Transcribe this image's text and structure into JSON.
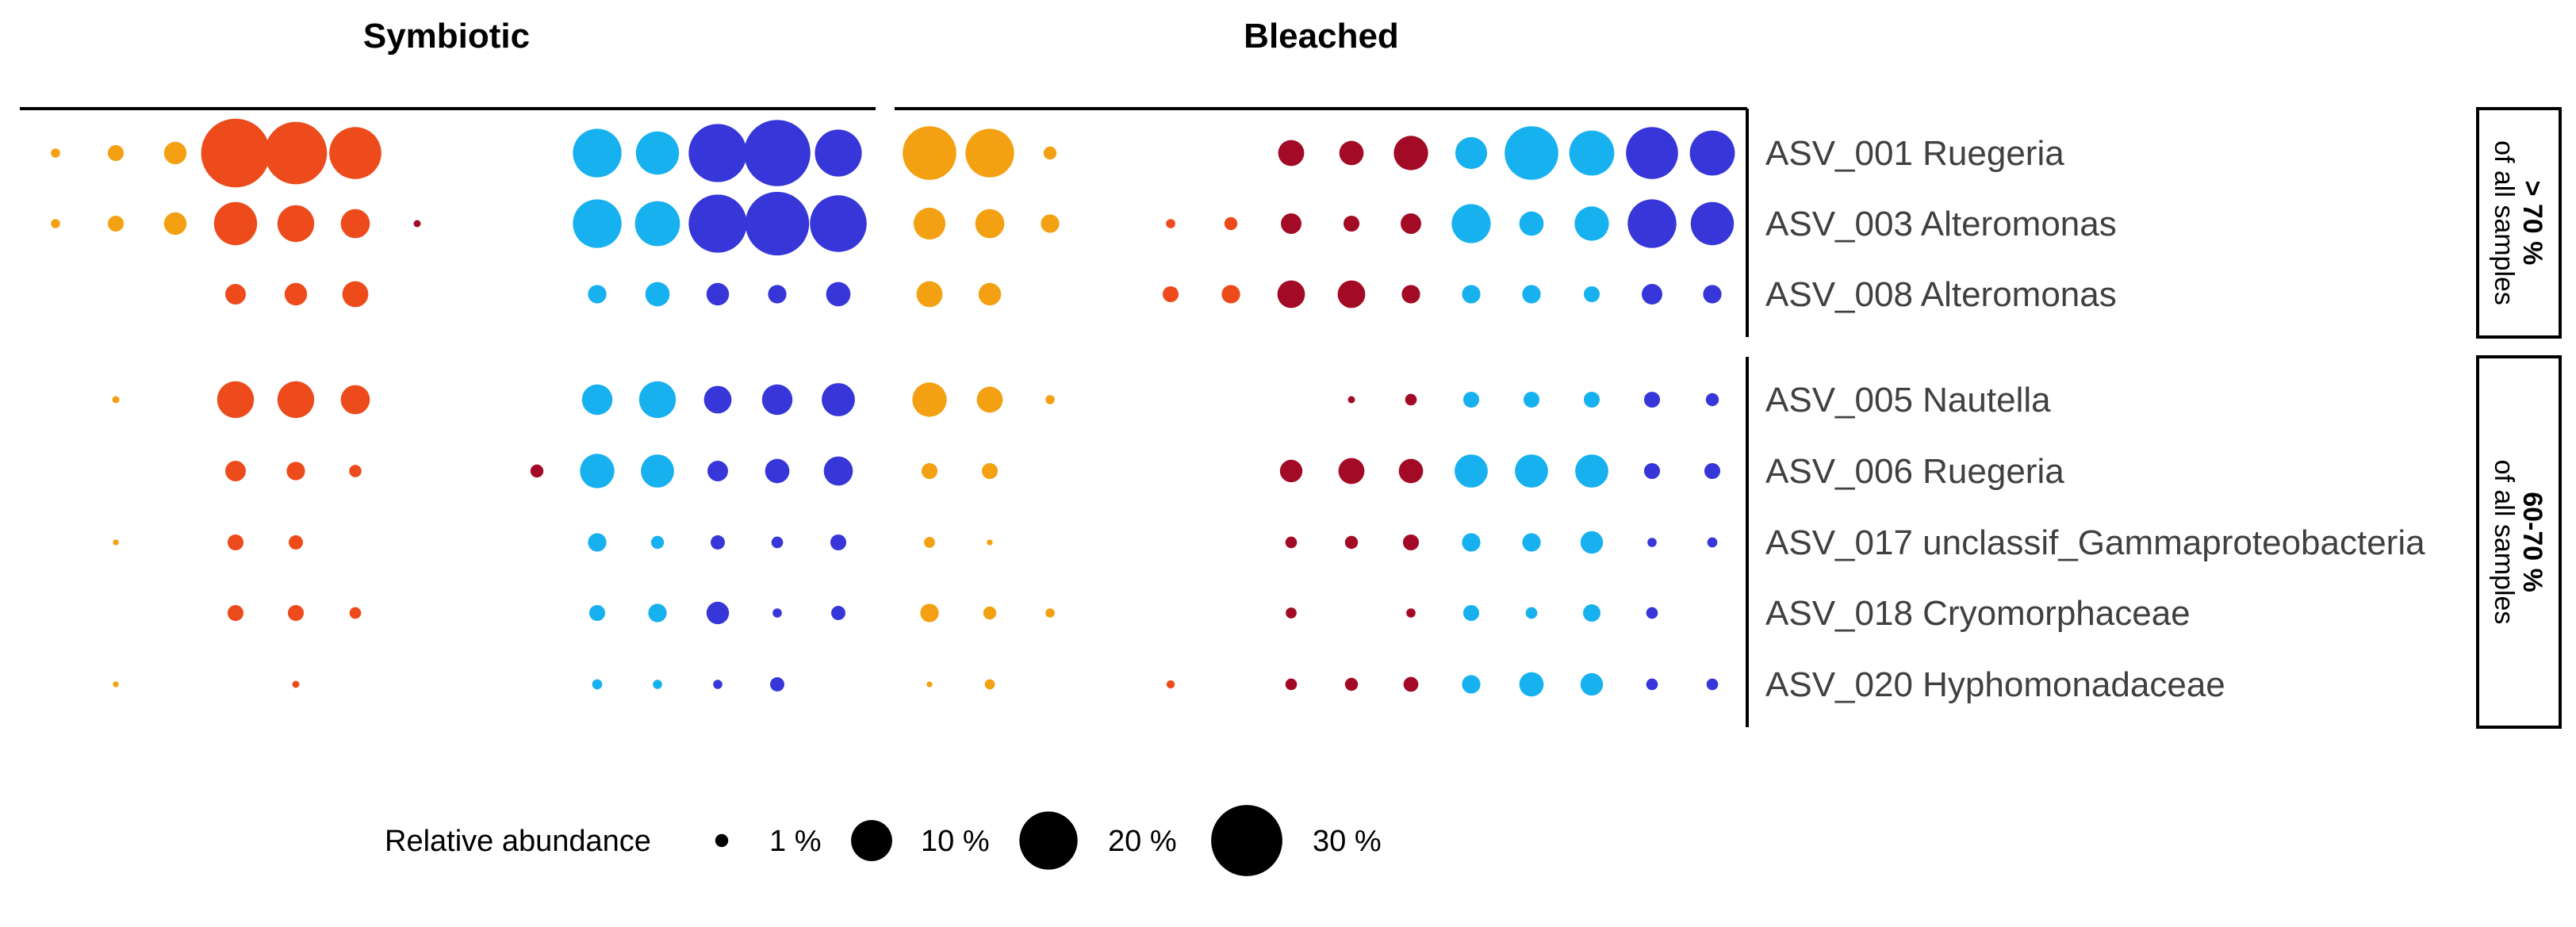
{
  "chart_data": {
    "type": "bubble",
    "panels": [
      "Symbiotic",
      "Bleached"
    ],
    "colors": {
      "orange": "#F3A113",
      "red_orange": "#EE4B1C",
      "dark_red": "#A20A25",
      "light_blue": "#17B1EF",
      "dark_blue": "#3636D9"
    },
    "groups": [
      {
        "label_bold": "> 70 %",
        "label_rest": "of all samples",
        "rows": [
          {
            "label": "ASV_001 Ruegeria",
            "symbiotic": [
              [
                "orange",
                0.5
              ],
              [
                "orange",
                1.5
              ],
              [
                "orange",
                3
              ],
              [
                "red_orange",
                28
              ],
              [
                "red_orange",
                23
              ],
              [
                "red_orange",
                16
              ],
              [
                null,
                0
              ],
              [
                null,
                0
              ],
              [
                null,
                0
              ],
              [
                "light_blue",
                14
              ],
              [
                "light_blue",
                11
              ],
              [
                "dark_blue",
                20
              ],
              [
                "dark_blue",
                26
              ],
              [
                "dark_blue",
                13
              ]
            ],
            "bleached": [
              [
                "orange",
                17
              ],
              [
                "orange",
                14
              ],
              [
                "orange",
                1
              ],
              [
                null,
                0
              ],
              [
                null,
                0
              ],
              [
                null,
                0
              ],
              [
                "dark_red",
                4
              ],
              [
                "dark_red",
                3.5
              ],
              [
                "dark_red",
                7
              ],
              [
                "light_blue",
                6
              ],
              [
                "light_blue",
                17
              ],
              [
                "light_blue",
                12
              ],
              [
                "dark_blue",
                16
              ],
              [
                "dark_blue",
                12
              ]
            ]
          },
          {
            "label": "ASV_003 Alteromonas",
            "symbiotic": [
              [
                "orange",
                0.5
              ],
              [
                "orange",
                1.5
              ],
              [
                "orange",
                3
              ],
              [
                "red_orange",
                11
              ],
              [
                "red_orange",
                8
              ],
              [
                "red_orange",
                5
              ],
              [
                "dark_red",
                0.3
              ],
              [
                null,
                0
              ],
              [
                null,
                0
              ],
              [
                "light_blue",
                14
              ],
              [
                "light_blue",
                12
              ],
              [
                "dark_blue",
                20
              ],
              [
                "dark_blue",
                24
              ],
              [
                "dark_blue",
                19
              ]
            ],
            "bleached": [
              [
                "orange",
                6
              ],
              [
                "orange",
                5
              ],
              [
                "orange",
                2
              ],
              [
                null,
                0
              ],
              [
                "red_orange",
                0.5
              ],
              [
                "red_orange",
                1
              ],
              [
                "dark_red",
                2.5
              ],
              [
                "dark_red",
                1.5
              ],
              [
                "dark_red",
                2.5
              ],
              [
                "light_blue",
                9
              ],
              [
                "light_blue",
                3.5
              ],
              [
                "light_blue",
                7
              ],
              [
                "dark_blue",
                14
              ],
              [
                "dark_blue",
                11
              ]
            ]
          },
          {
            "label": "ASV_008 Alteromonas",
            "symbiotic": [
              [
                null,
                0
              ],
              [
                null,
                0
              ],
              [
                null,
                0
              ],
              [
                "red_orange",
                2.5
              ],
              [
                "red_orange",
                3
              ],
              [
                "red_orange",
                4
              ],
              [
                null,
                0
              ],
              [
                null,
                0
              ],
              [
                null,
                0
              ],
              [
                "light_blue",
                2
              ],
              [
                "light_blue",
                3.5
              ],
              [
                "dark_blue",
                3
              ],
              [
                "dark_blue",
                2
              ],
              [
                "dark_blue",
                3.5
              ]
            ],
            "bleached": [
              [
                "orange",
                4
              ],
              [
                "orange",
                3
              ],
              [
                null,
                0
              ],
              [
                null,
                0
              ],
              [
                "red_orange",
                1.5
              ],
              [
                "red_orange",
                2
              ],
              [
                "dark_red",
                4.5
              ],
              [
                "dark_red",
                4.5
              ],
              [
                "dark_red",
                2
              ],
              [
                "light_blue",
                2
              ],
              [
                "light_blue",
                2
              ],
              [
                "light_blue",
                1.5
              ],
              [
                "dark_blue",
                2.5
              ],
              [
                "dark_blue",
                2
              ]
            ]
          }
        ]
      },
      {
        "label_bold": "60-70 %",
        "label_rest": "of all samples",
        "rows": [
          {
            "label": "ASV_005 Nautella",
            "symbiotic": [
              [
                null,
                0
              ],
              [
                "orange",
                0.3
              ],
              [
                null,
                0
              ],
              [
                "red_orange",
                8
              ],
              [
                "red_orange",
                8
              ],
              [
                "red_orange",
                5
              ],
              [
                null,
                0
              ],
              [
                null,
                0
              ],
              [
                null,
                0
              ],
              [
                "light_blue",
                5.5
              ],
              [
                "light_blue",
                8
              ],
              [
                "dark_blue",
                4.5
              ],
              [
                "dark_blue",
                5.5
              ],
              [
                "dark_blue",
                6.5
              ]
            ],
            "bleached": [
              [
                "orange",
                7
              ],
              [
                "orange",
                4
              ],
              [
                "orange",
                0.5
              ],
              [
                null,
                0
              ],
              [
                null,
                0
              ],
              [
                null,
                0
              ],
              [
                null,
                0
              ],
              [
                "dark_red",
                0.3
              ],
              [
                "dark_red",
                0.8
              ],
              [
                "light_blue",
                1.5
              ],
              [
                "light_blue",
                1.5
              ],
              [
                "light_blue",
                1.5
              ],
              [
                "dark_blue",
                1.5
              ],
              [
                "dark_blue",
                1
              ]
            ]
          },
          {
            "label": "ASV_006 Ruegeria",
            "symbiotic": [
              [
                null,
                0
              ],
              [
                null,
                0
              ],
              [
                null,
                0
              ],
              [
                "red_orange",
                2.5
              ],
              [
                "red_orange",
                2
              ],
              [
                "red_orange",
                0.9
              ],
              [
                null,
                0
              ],
              [
                null,
                0
              ],
              [
                "dark_red",
                1
              ],
              [
                "light_blue",
                7
              ],
              [
                "light_blue",
                6.5
              ],
              [
                "dark_blue",
                2.5
              ],
              [
                "dark_blue",
                3.5
              ],
              [
                "dark_blue",
                5
              ]
            ],
            "bleached": [
              [
                "orange",
                1.5
              ],
              [
                "orange",
                1.5
              ],
              [
                null,
                0
              ],
              [
                null,
                0
              ],
              [
                null,
                0
              ],
              [
                null,
                0
              ],
              [
                "dark_red",
                3
              ],
              [
                "dark_red",
                4
              ],
              [
                "dark_red",
                3.5
              ],
              [
                "light_blue",
                6.5
              ],
              [
                "light_blue",
                6.5
              ],
              [
                "light_blue",
                6.5
              ],
              [
                "dark_blue",
                1.5
              ],
              [
                "dark_blue",
                1.5
              ]
            ]
          },
          {
            "label": "ASV_017 unclassif_Gammaproteobacteria",
            "symbiotic": [
              [
                null,
                0
              ],
              [
                "orange",
                0.2
              ],
              [
                null,
                0
              ],
              [
                "red_orange",
                1.5
              ],
              [
                "red_orange",
                1.2
              ],
              [
                null,
                0
              ],
              [
                null,
                0
              ],
              [
                null,
                0
              ],
              [
                null,
                0
              ],
              [
                "light_blue",
                2
              ],
              [
                "light_blue",
                1
              ],
              [
                "dark_blue",
                1.2
              ],
              [
                "dark_blue",
                0.8
              ],
              [
                "dark_blue",
                1.5
              ]
            ],
            "bleached": [
              [
                "orange",
                0.7
              ],
              [
                "orange",
                0.2
              ],
              [
                null,
                0
              ],
              [
                null,
                0
              ],
              [
                null,
                0
              ],
              [
                null,
                0
              ],
              [
                "dark_red",
                0.8
              ],
              [
                "dark_red",
                1
              ],
              [
                "dark_red",
                1.5
              ],
              [
                "light_blue",
                2
              ],
              [
                "light_blue",
                2
              ],
              [
                "light_blue",
                3
              ],
              [
                "dark_blue",
                0.5
              ],
              [
                "dark_blue",
                0.6
              ]
            ]
          },
          {
            "label": "ASV_018 Cryomorphaceae",
            "symbiotic": [
              [
                null,
                0
              ],
              [
                null,
                0
              ],
              [
                null,
                0
              ],
              [
                "red_orange",
                1.5
              ],
              [
                "red_orange",
                1.5
              ],
              [
                "red_orange",
                0.8
              ],
              [
                null,
                0
              ],
              [
                null,
                0
              ],
              [
                null,
                0
              ],
              [
                "light_blue",
                1.5
              ],
              [
                "light_blue",
                2
              ],
              [
                "dark_blue",
                3
              ],
              [
                "dark_blue",
                0.5
              ],
              [
                "dark_blue",
                1.2
              ]
            ],
            "bleached": [
              [
                "orange",
                2
              ],
              [
                "orange",
                1
              ],
              [
                "orange",
                0.5
              ],
              [
                null,
                0
              ],
              [
                null,
                0
              ],
              [
                null,
                0
              ],
              [
                "dark_red",
                0.7
              ],
              [
                null,
                0
              ],
              [
                "dark_red",
                0.5
              ],
              [
                "light_blue",
                1.5
              ],
              [
                "light_blue",
                0.8
              ],
              [
                "light_blue",
                1.8
              ],
              [
                "dark_blue",
                0.8
              ],
              [
                null,
                0
              ]
            ]
          },
          {
            "label": "ASV_020 Hyphomonadaceae",
            "symbiotic": [
              [
                null,
                0
              ],
              [
                "orange",
                0.2
              ],
              [
                null,
                0
              ],
              [
                null,
                0
              ],
              [
                "red_orange",
                0.3
              ],
              [
                null,
                0
              ],
              [
                null,
                0
              ],
              [
                null,
                0
              ],
              [
                null,
                0
              ],
              [
                "light_blue",
                0.6
              ],
              [
                "light_blue",
                0.5
              ],
              [
                "dark_blue",
                0.5
              ],
              [
                "dark_blue",
                1.2
              ],
              [
                null,
                0
              ]
            ],
            "bleached": [
              [
                "orange",
                0.2
              ],
              [
                "orange",
                0.6
              ],
              [
                null,
                0
              ],
              [
                null,
                0
              ],
              [
                "red_orange",
                0.4
              ],
              [
                null,
                0
              ],
              [
                "dark_red",
                0.8
              ],
              [
                "dark_red",
                1
              ],
              [
                "dark_red",
                1.3
              ],
              [
                "light_blue",
                2
              ],
              [
                "light_blue",
                3.5
              ],
              [
                "light_blue",
                3
              ],
              [
                "dark_blue",
                0.8
              ],
              [
                "dark_blue",
                0.8
              ]
            ]
          }
        ]
      }
    ],
    "legend": {
      "title": "Relative abundance",
      "entries": [
        {
          "label": "1 %",
          "value": 1
        },
        {
          "label": "10 %",
          "value": 10
        },
        {
          "label": "20 %",
          "value": 20
        },
        {
          "label": "30 %",
          "value": 30
        }
      ]
    }
  }
}
